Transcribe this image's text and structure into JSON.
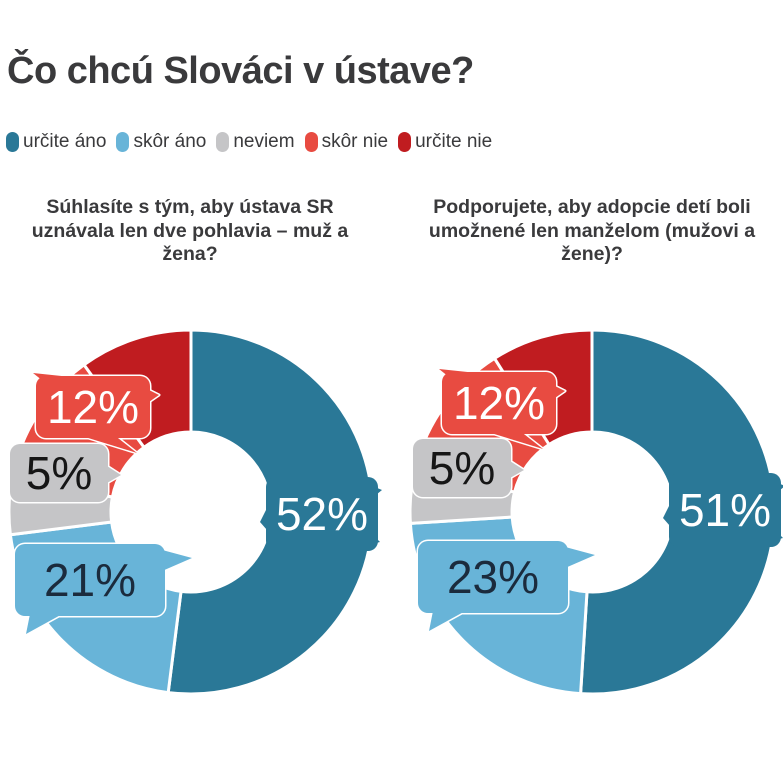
{
  "header": {
    "title": "Čo chcú Slováci v ústave?"
  },
  "legend": {
    "items": [
      {
        "label": "určite áno",
        "color": "#2a7897"
      },
      {
        "label": "skôr áno",
        "color": "#68b4d8"
      },
      {
        "label": "neviem",
        "color": "#c5c5c7"
      },
      {
        "label": "skôr nie",
        "color": "#e84b41"
      },
      {
        "label": "určite nie",
        "color": "#c01c20"
      }
    ]
  },
  "chart_data": [
    {
      "type": "pie",
      "subtype": "donut",
      "question": "Súhlasíte s tým, aby ústava SR uznávala len dve pohlavia – muž a žena?",
      "start_angle_deg": 0,
      "direction": "clockwise",
      "segments": [
        {
          "name": "určite áno",
          "value": 52,
          "label": "52%",
          "color": "#2a7897",
          "text_color": "#ffffff"
        },
        {
          "name": "skôr áno",
          "value": 21,
          "label": "21%",
          "color": "#68b4d8",
          "text_color": "#1b2b3d"
        },
        {
          "name": "neviem",
          "value": 5,
          "label": "5%",
          "color": "#c5c5c7",
          "text_color": "#161616"
        },
        {
          "name": "skôr nie",
          "value": 12,
          "label": "12%",
          "color": "#e84b41",
          "text_color": "#ffffff"
        },
        {
          "name": "určite nie",
          "value": 10,
          "label": null,
          "color": "#c01c20",
          "text_color": null
        }
      ]
    },
    {
      "type": "pie",
      "subtype": "donut",
      "question": "Podporujete, aby adopcie detí boli umožnené len manželom (mužovi a žene)?",
      "start_angle_deg": 0,
      "direction": "clockwise",
      "segments": [
        {
          "name": "určite áno",
          "value": 51,
          "label": "51%",
          "color": "#2a7897",
          "text_color": "#ffffff"
        },
        {
          "name": "skôr áno",
          "value": 23,
          "label": "23%",
          "color": "#68b4d8",
          "text_color": "#1b2b3d"
        },
        {
          "name": "neviem",
          "value": 5,
          "label": "5%",
          "color": "#c5c5c7",
          "text_color": "#161616"
        },
        {
          "name": "skôr nie",
          "value": 12,
          "label": "12%",
          "color": "#e84b41",
          "text_color": "#ffffff"
        },
        {
          "name": "určite nie",
          "value": 9,
          "label": null,
          "color": "#c01c20",
          "text_color": null
        }
      ]
    }
  ]
}
